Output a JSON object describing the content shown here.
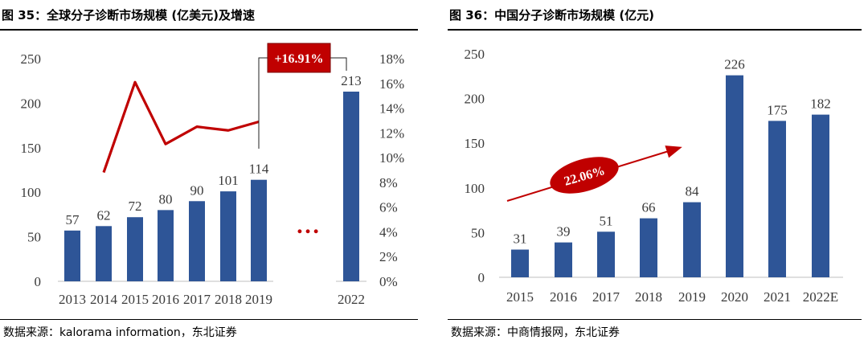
{
  "colors": {
    "bar": "#2E5597",
    "line": "#C00000",
    "axis": "#BFBFBF",
    "text": "#3A3A3A"
  },
  "charts": [
    {
      "title": "图 35：全球分子诊断市场规模 (亿美元)及增速",
      "source": "数据来源：kalorama information，东北证券",
      "callout_label": "+16.91%",
      "ellipsis": "…"
    },
    {
      "title": "图 36：中国分子诊断市场规模 (亿元)",
      "source": "数据来源：中商情报网，东北证券",
      "callout_label": "22.06%"
    }
  ],
  "chart_data": [
    {
      "type": "bar",
      "categories": [
        "2013",
        "2014",
        "2015",
        "2016",
        "2017",
        "2018",
        "2019",
        "2022"
      ],
      "series": [
        {
          "values": [
            57,
            62,
            72,
            80,
            90,
            101,
            114,
            213
          ]
        },
        {
          "type": "line",
          "axis": "right",
          "x": [
            "2014",
            "2015",
            "2016",
            "2017",
            "2018",
            "2019"
          ],
          "values": [
            8.8,
            16.1,
            11.1,
            12.5,
            12.2,
            12.9
          ]
        }
      ],
      "ylim": [
        0,
        250
      ],
      "yticks": [
        "0",
        "50",
        "100",
        "150",
        "200",
        "250"
      ],
      "y2lim": [
        0,
        18
      ],
      "y2ticks": [
        "0%",
        "2%",
        "4%",
        "6%",
        "8%",
        "10%",
        "12%",
        "14%",
        "16%",
        "18%"
      ],
      "annotations": [
        "+16.91%"
      ]
    },
    {
      "type": "bar",
      "categories": [
        "2015",
        "2016",
        "2017",
        "2018",
        "2019",
        "2020",
        "2021",
        "2022E"
      ],
      "series": [
        {
          "values": [
            31,
            39,
            51,
            66,
            84,
            226,
            175,
            182
          ]
        }
      ],
      "ylim": [
        0,
        250
      ],
      "yticks": [
        "0",
        "50",
        "100",
        "150",
        "200",
        "250"
      ],
      "annotations": [
        "22.06%"
      ]
    }
  ]
}
